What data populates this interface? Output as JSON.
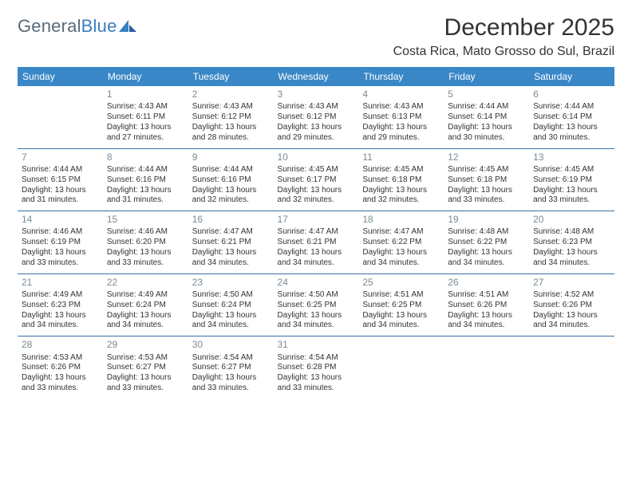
{
  "brand": {
    "part1": "General",
    "part2": "Blue"
  },
  "title": "December 2025",
  "subtitle": "Costa Rica, Mato Grosso do Sul, Brazil",
  "headers": [
    "Sunday",
    "Monday",
    "Tuesday",
    "Wednesday",
    "Thursday",
    "Friday",
    "Saturday"
  ],
  "colors": {
    "header_bg": "#3a87c7",
    "header_fg": "#ffffff",
    "row_border": "#3a6fa3",
    "daynum": "#7a8a95",
    "title": "#333333",
    "logo_gray": "#5a6a78",
    "logo_blue": "#3a7fbf"
  },
  "weeks": [
    [
      null,
      {
        "n": "1",
        "sunrise": "4:43 AM",
        "sunset": "6:11 PM",
        "day_h": "13",
        "day_m": "27"
      },
      {
        "n": "2",
        "sunrise": "4:43 AM",
        "sunset": "6:12 PM",
        "day_h": "13",
        "day_m": "28"
      },
      {
        "n": "3",
        "sunrise": "4:43 AM",
        "sunset": "6:12 PM",
        "day_h": "13",
        "day_m": "29"
      },
      {
        "n": "4",
        "sunrise": "4:43 AM",
        "sunset": "6:13 PM",
        "day_h": "13",
        "day_m": "29"
      },
      {
        "n": "5",
        "sunrise": "4:44 AM",
        "sunset": "6:14 PM",
        "day_h": "13",
        "day_m": "30"
      },
      {
        "n": "6",
        "sunrise": "4:44 AM",
        "sunset": "6:14 PM",
        "day_h": "13",
        "day_m": "30"
      }
    ],
    [
      {
        "n": "7",
        "sunrise": "4:44 AM",
        "sunset": "6:15 PM",
        "day_h": "13",
        "day_m": "31"
      },
      {
        "n": "8",
        "sunrise": "4:44 AM",
        "sunset": "6:16 PM",
        "day_h": "13",
        "day_m": "31"
      },
      {
        "n": "9",
        "sunrise": "4:44 AM",
        "sunset": "6:16 PM",
        "day_h": "13",
        "day_m": "32"
      },
      {
        "n": "10",
        "sunrise": "4:45 AM",
        "sunset": "6:17 PM",
        "day_h": "13",
        "day_m": "32"
      },
      {
        "n": "11",
        "sunrise": "4:45 AM",
        "sunset": "6:18 PM",
        "day_h": "13",
        "day_m": "32"
      },
      {
        "n": "12",
        "sunrise": "4:45 AM",
        "sunset": "6:18 PM",
        "day_h": "13",
        "day_m": "33"
      },
      {
        "n": "13",
        "sunrise": "4:45 AM",
        "sunset": "6:19 PM",
        "day_h": "13",
        "day_m": "33"
      }
    ],
    [
      {
        "n": "14",
        "sunrise": "4:46 AM",
        "sunset": "6:19 PM",
        "day_h": "13",
        "day_m": "33"
      },
      {
        "n": "15",
        "sunrise": "4:46 AM",
        "sunset": "6:20 PM",
        "day_h": "13",
        "day_m": "33"
      },
      {
        "n": "16",
        "sunrise": "4:47 AM",
        "sunset": "6:21 PM",
        "day_h": "13",
        "day_m": "34"
      },
      {
        "n": "17",
        "sunrise": "4:47 AM",
        "sunset": "6:21 PM",
        "day_h": "13",
        "day_m": "34"
      },
      {
        "n": "18",
        "sunrise": "4:47 AM",
        "sunset": "6:22 PM",
        "day_h": "13",
        "day_m": "34"
      },
      {
        "n": "19",
        "sunrise": "4:48 AM",
        "sunset": "6:22 PM",
        "day_h": "13",
        "day_m": "34"
      },
      {
        "n": "20",
        "sunrise": "4:48 AM",
        "sunset": "6:23 PM",
        "day_h": "13",
        "day_m": "34"
      }
    ],
    [
      {
        "n": "21",
        "sunrise": "4:49 AM",
        "sunset": "6:23 PM",
        "day_h": "13",
        "day_m": "34"
      },
      {
        "n": "22",
        "sunrise": "4:49 AM",
        "sunset": "6:24 PM",
        "day_h": "13",
        "day_m": "34"
      },
      {
        "n": "23",
        "sunrise": "4:50 AM",
        "sunset": "6:24 PM",
        "day_h": "13",
        "day_m": "34"
      },
      {
        "n": "24",
        "sunrise": "4:50 AM",
        "sunset": "6:25 PM",
        "day_h": "13",
        "day_m": "34"
      },
      {
        "n": "25",
        "sunrise": "4:51 AM",
        "sunset": "6:25 PM",
        "day_h": "13",
        "day_m": "34"
      },
      {
        "n": "26",
        "sunrise": "4:51 AM",
        "sunset": "6:26 PM",
        "day_h": "13",
        "day_m": "34"
      },
      {
        "n": "27",
        "sunrise": "4:52 AM",
        "sunset": "6:26 PM",
        "day_h": "13",
        "day_m": "34"
      }
    ],
    [
      {
        "n": "28",
        "sunrise": "4:53 AM",
        "sunset": "6:26 PM",
        "day_h": "13",
        "day_m": "33"
      },
      {
        "n": "29",
        "sunrise": "4:53 AM",
        "sunset": "6:27 PM",
        "day_h": "13",
        "day_m": "33"
      },
      {
        "n": "30",
        "sunrise": "4:54 AM",
        "sunset": "6:27 PM",
        "day_h": "13",
        "day_m": "33"
      },
      {
        "n": "31",
        "sunrise": "4:54 AM",
        "sunset": "6:28 PM",
        "day_h": "13",
        "day_m": "33"
      },
      null,
      null,
      null
    ]
  ],
  "labels": {
    "sunrise_prefix": "Sunrise: ",
    "sunset_prefix": "Sunset: ",
    "daylight_prefix": "Daylight: ",
    "hours_word": " hours",
    "and_word": "and ",
    "minutes_word": " minutes."
  }
}
